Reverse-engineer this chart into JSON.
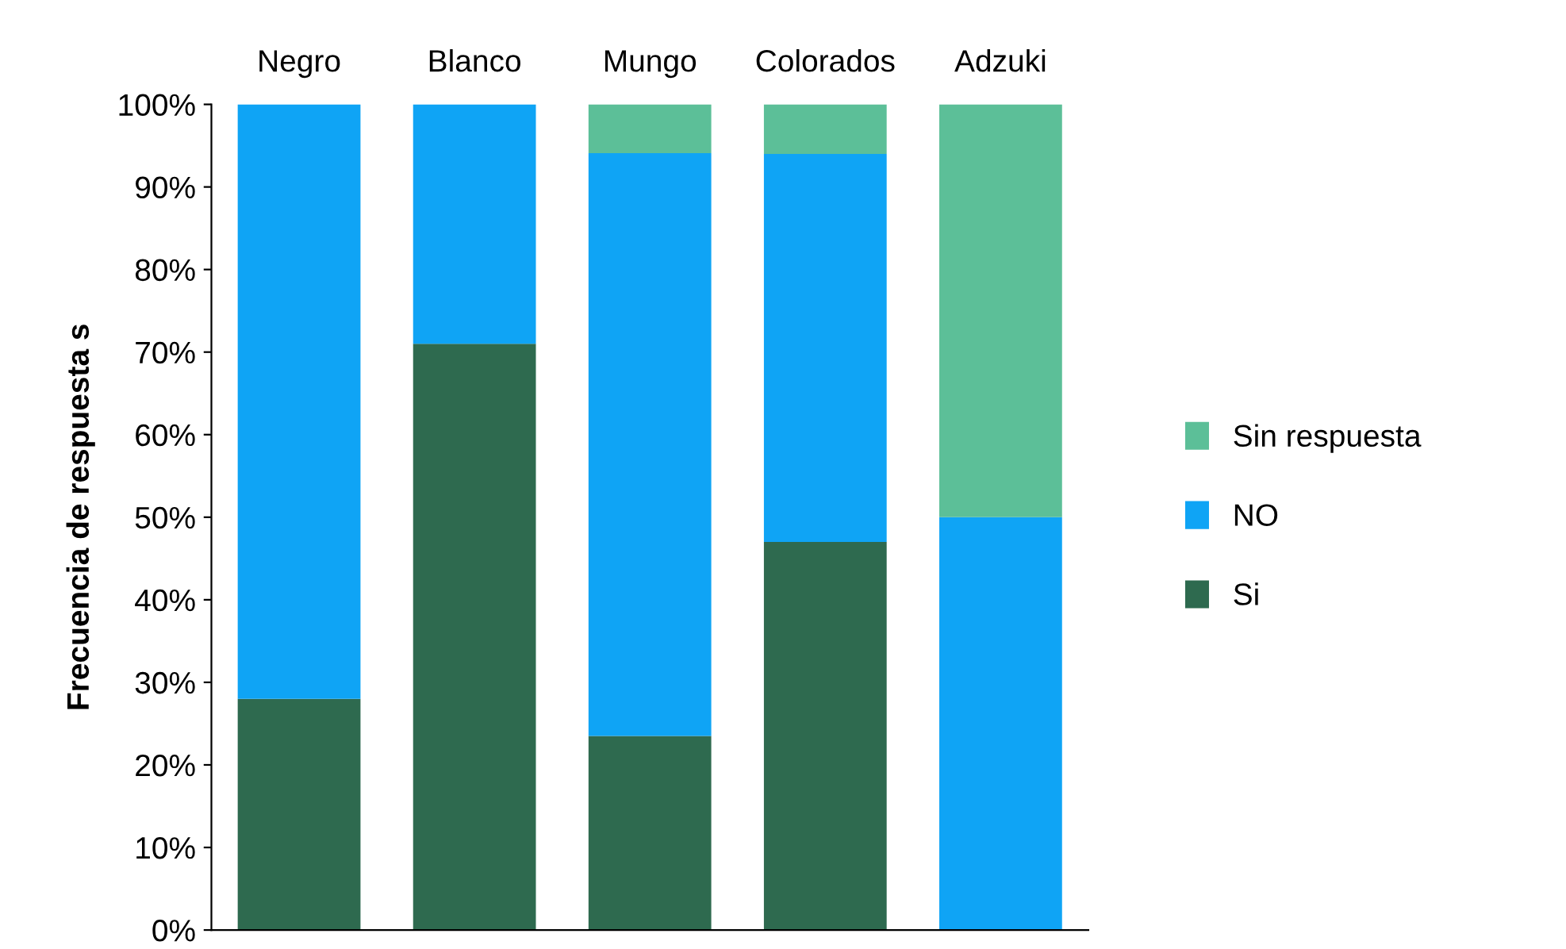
{
  "chart_data": {
    "type": "bar",
    "stacked": true,
    "ylabel": "Frecuencia de respuesta s",
    "categories": [
      "Negro",
      "Blanco",
      "Mungo",
      "Colorados",
      "Adzuki"
    ],
    "series": [
      {
        "name": "Si",
        "color": "#2e6a4f",
        "values": [
          28,
          71,
          23.5,
          47,
          0
        ]
      },
      {
        "name": "NO",
        "color": "#0fa4f5",
        "values": [
          72,
          29,
          70.6,
          47,
          50
        ]
      },
      {
        "name": "Sin respuesta",
        "color": "#5cbf98",
        "values": [
          0,
          0,
          5.9,
          6,
          50
        ]
      }
    ],
    "ylim": [
      0,
      100
    ],
    "yticks": [
      {
        "value": 0,
        "label": "0%"
      },
      {
        "value": 10,
        "label": "10%"
      },
      {
        "value": 20,
        "label": "20%"
      },
      {
        "value": 30,
        "label": "30%"
      },
      {
        "value": 40,
        "label": "40%"
      },
      {
        "value": 50,
        "label": "50%"
      },
      {
        "value": 60,
        "label": "60%"
      },
      {
        "value": 70,
        "label": "70%"
      },
      {
        "value": 80,
        "label": "80%"
      },
      {
        "value": 90,
        "label": "90%"
      },
      {
        "value": 100,
        "label": "100%"
      }
    ],
    "grid": false,
    "legend": "right"
  }
}
